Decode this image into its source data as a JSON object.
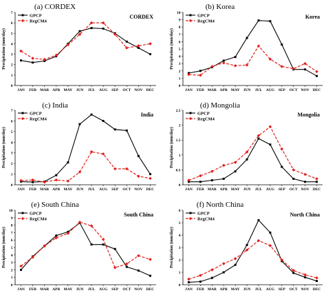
{
  "months": [
    "JAN",
    "FEB",
    "MAR",
    "APR",
    "MAY",
    "JUN",
    "JUL",
    "AUG",
    "SEP",
    "OCT",
    "NOV",
    "DEC"
  ],
  "ylabel": "Precipitation (mm/day)",
  "colors": {
    "gpcp": "#000000",
    "regcm4": "#e0201b"
  },
  "chart_data": [
    {
      "type": "line",
      "caption": "(a) CORDEX",
      "title": "CORDEX",
      "ylim": [
        0,
        7
      ],
      "yticks": [
        0,
        1,
        2,
        3,
        4,
        5,
        6,
        7
      ],
      "legend": "top-left",
      "categories": [
        "JAN",
        "FEB",
        "MAR",
        "APR",
        "MAY",
        "JUN",
        "JUL",
        "AUG",
        "SEP",
        "OCT",
        "NOV",
        "DEC"
      ],
      "series": [
        {
          "name": "GPCP",
          "values": [
            2.4,
            2.2,
            2.35,
            2.8,
            4.0,
            5.2,
            5.5,
            5.45,
            5.0,
            4.2,
            3.6,
            3.0
          ]
        },
        {
          "name": "RegCM4",
          "values": [
            3.3,
            2.6,
            2.5,
            2.9,
            3.9,
            4.9,
            6.0,
            6.0,
            4.9,
            3.6,
            3.8,
            4.0
          ]
        }
      ]
    },
    {
      "type": "line",
      "caption": "(b) Korea",
      "title": "Korea",
      "ylim": [
        0,
        10
      ],
      "yticks": [
        0,
        1,
        2,
        3,
        4,
        5,
        6,
        7,
        8,
        9,
        10
      ],
      "legend": "top-left",
      "categories": [
        "JAN",
        "FEB",
        "MAR",
        "APR",
        "MAY",
        "JUN",
        "JUL",
        "AUG",
        "SEP",
        "OCT",
        "NOV",
        "DEC"
      ],
      "series": [
        {
          "name": "GPCP",
          "values": [
            1.7,
            2.0,
            2.5,
            3.4,
            3.9,
            6.5,
            8.9,
            8.8,
            5.6,
            2.2,
            2.2,
            1.3
          ]
        },
        {
          "name": "RegCM4",
          "values": [
            1.5,
            1.4,
            2.6,
            3.1,
            2.7,
            2.8,
            5.4,
            3.6,
            2.6,
            2.3,
            3.0,
            1.9
          ]
        }
      ]
    },
    {
      "type": "line",
      "caption": "(c) India",
      "title": "India",
      "ylim": [
        0,
        7
      ],
      "yticks": [
        0,
        1,
        2,
        3,
        4,
        5,
        6,
        7
      ],
      "legend": "top-left",
      "categories": [
        "JAN",
        "FEB",
        "MAR",
        "APR",
        "MAY",
        "JUN",
        "JUL",
        "AUG",
        "SEP",
        "OCT",
        "NOV",
        "DEC"
      ],
      "series": [
        {
          "name": "GPCP",
          "values": [
            0.3,
            0.25,
            0.3,
            0.9,
            2.1,
            5.7,
            6.6,
            6.0,
            5.2,
            5.1,
            2.7,
            1.0
          ]
        },
        {
          "name": "RegCM4",
          "values": [
            0.4,
            0.45,
            0.25,
            0.45,
            0.35,
            1.2,
            3.1,
            2.9,
            1.5,
            1.5,
            0.8,
            0.6
          ]
        }
      ]
    },
    {
      "type": "line",
      "caption": "(d) Mongolia",
      "title": "Mongolia",
      "ylim": [
        0,
        2.5
      ],
      "yticks": [
        0,
        0.5,
        1,
        1.5,
        2,
        2.5
      ],
      "legend": "top-left",
      "categories": [
        "JAN",
        "FEB",
        "MAR",
        "APR",
        "MAY",
        "JUN",
        "JUL",
        "AUG",
        "SEP",
        "OCT",
        "NOV",
        "DEC"
      ],
      "series": [
        {
          "name": "GPCP",
          "values": [
            0.1,
            0.1,
            0.15,
            0.2,
            0.45,
            0.85,
            1.55,
            1.35,
            0.6,
            0.2,
            0.1,
            0.1
          ]
        },
        {
          "name": "RegCM4",
          "values": [
            0.15,
            0.3,
            0.45,
            0.65,
            0.75,
            1.1,
            1.65,
            1.95,
            1.2,
            0.5,
            0.35,
            0.2
          ]
        }
      ]
    },
    {
      "type": "line",
      "caption": "(e) South China",
      "title": "South China",
      "ylim": [
        0,
        10
      ],
      "yticks": [
        0,
        1,
        2,
        3,
        4,
        5,
        6,
        7,
        8,
        9,
        10
      ],
      "legend": "top-left",
      "categories": [
        "JAN",
        "FEB",
        "MAR",
        "APR",
        "MAY",
        "JUN",
        "JUL",
        "AUG",
        "SEP",
        "OCT",
        "NOV",
        "DEC"
      ],
      "series": [
        {
          "name": "GPCP",
          "values": [
            2.0,
            3.8,
            5.2,
            6.6,
            7.1,
            8.3,
            5.4,
            5.4,
            4.8,
            2.4,
            1.9,
            1.2
          ]
        },
        {
          "name": "RegCM4",
          "values": [
            2.5,
            3.7,
            5.2,
            6.3,
            6.9,
            8.4,
            7.9,
            6.1,
            2.3,
            2.8,
            3.9,
            3.4
          ]
        }
      ]
    },
    {
      "type": "line",
      "caption": "(f) North China",
      "title": "North China",
      "ylim": [
        0,
        6
      ],
      "yticks": [
        0,
        1,
        2,
        3,
        4,
        5,
        6
      ],
      "legend": "top-left",
      "categories": [
        "JAN",
        "FEB",
        "MAR",
        "APR",
        "MAY",
        "JUN",
        "JUL",
        "AUG",
        "SEP",
        "OCT",
        "NOV",
        "DEC"
      ],
      "series": [
        {
          "name": "GPCP",
          "values": [
            0.2,
            0.25,
            0.55,
            1.0,
            1.6,
            3.2,
            5.2,
            4.2,
            1.9,
            0.95,
            0.6,
            0.3
          ]
        },
        {
          "name": "RegCM4",
          "values": [
            0.45,
            0.75,
            1.2,
            1.7,
            2.1,
            2.8,
            3.55,
            3.15,
            2.0,
            1.15,
            0.8,
            0.55
          ]
        }
      ]
    }
  ]
}
